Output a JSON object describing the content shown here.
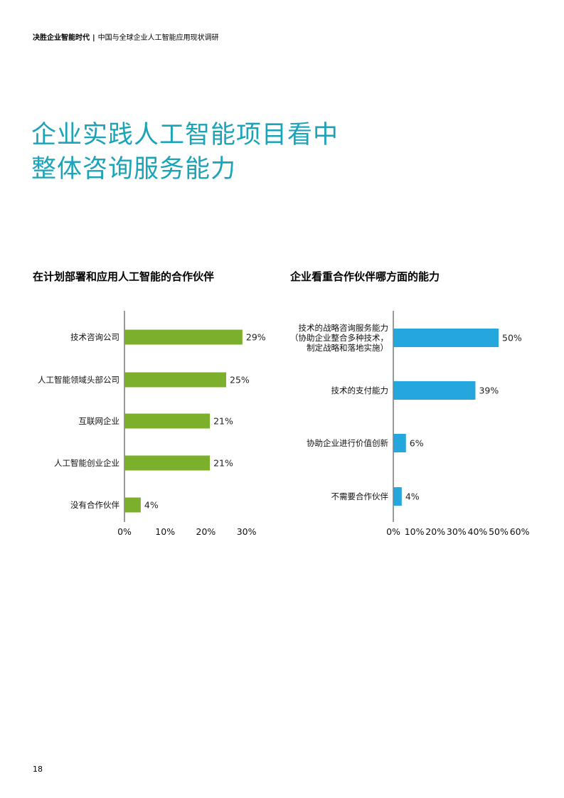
{
  "header": {
    "brand": "决胜企业智能时代",
    "separator": "|",
    "subtitle": "中国与全球企业人工智能应用现状调研"
  },
  "title": {
    "line1": "企业实践人工智能项目看中",
    "line2": "整体咨询服务能力"
  },
  "page_number": "18",
  "chart_data": [
    {
      "type": "bar",
      "orientation": "horizontal",
      "title": "在计划部署和应用人工智能的合作伙伴",
      "categories": [
        "技术咨询公司",
        "人工智能领域头部公司",
        "互联网企业",
        "人工智能创业企业",
        "没有合作伙伴"
      ],
      "values": [
        29,
        25,
        21,
        21,
        4
      ],
      "value_labels": [
        "29%",
        "25%",
        "21%",
        "21%",
        "4%"
      ],
      "xlim": [
        0,
        30
      ],
      "ticks": [
        0,
        10,
        20,
        30
      ],
      "tick_labels": [
        "0%",
        "10%",
        "20%",
        "30%"
      ],
      "color": "#7cb02c",
      "grid": false
    },
    {
      "type": "bar",
      "orientation": "horizontal",
      "title": "企业看重合作伙伴哪方面的能力",
      "categories": [
        [
          "技术的战略咨询服务能力",
          "（协助企业整合多种技术，",
          "制定战略和落地实施）"
        ],
        [
          "技术的支付能力"
        ],
        [
          "协助企业进行价值创新"
        ],
        [
          "不需要合作伙伴"
        ]
      ],
      "values": [
        50,
        39,
        6,
        4
      ],
      "value_labels": [
        "50%",
        "39%",
        "6%",
        "4%"
      ],
      "xlim": [
        0,
        60
      ],
      "ticks": [
        0,
        10,
        20,
        30,
        40,
        50,
        60
      ],
      "tick_labels": [
        "0%",
        "10%",
        "20%",
        "30%",
        "40%",
        "50%",
        "60%"
      ],
      "color": "#25a6dc",
      "grid": false
    }
  ]
}
